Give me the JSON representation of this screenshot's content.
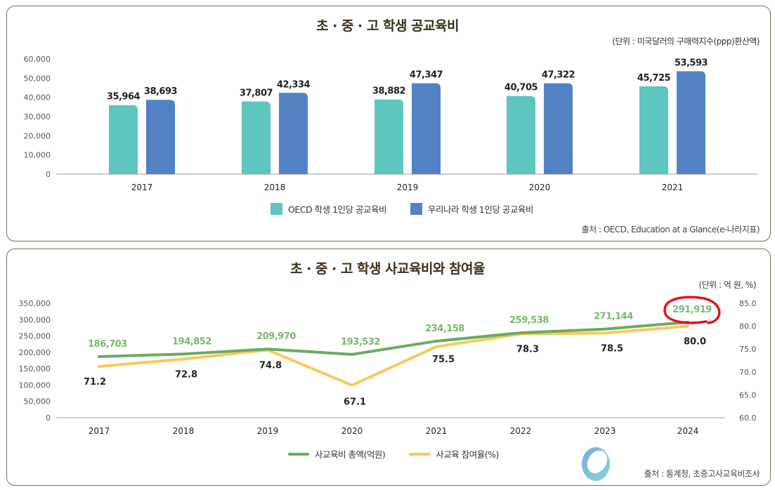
{
  "colors": {
    "oecd": "#5ec5bf",
    "korea": "#5282c4",
    "total": "#6aaa64",
    "rate": "#f9c95a",
    "annotation": "#e0141e"
  },
  "chart_data": [
    {
      "type": "bar",
      "title": "초 · 중 · 고 학생 공교육비",
      "unit_note": "(단위 : 미국달러의 구매력지수(ppp)환산액)",
      "source": "출처 : OECD, Education at a Glance(e-나라지표)",
      "categories": [
        "2017",
        "2018",
        "2019",
        "2020",
        "2021"
      ],
      "ylim": [
        0,
        60000
      ],
      "yticks": [
        "0",
        "10,000",
        "20,000",
        "30,000",
        "40,000",
        "50,000",
        "60,000"
      ],
      "legend_placement": "bottom",
      "series": [
        {
          "name": "OECD 학생 1인당 공교육비",
          "values": [
            35964,
            37807,
            38882,
            40705,
            45725
          ],
          "labels": [
            "35,964",
            "37,807",
            "38,882",
            "40,705",
            "45,725"
          ]
        },
        {
          "name": "우리나라 학생 1인당 공교육비",
          "values": [
            38693,
            42334,
            47347,
            47322,
            53593
          ],
          "labels": [
            "38,693",
            "42,334",
            "47,347",
            "47,322",
            "53,593"
          ]
        }
      ]
    },
    {
      "type": "line",
      "title": "초 · 중 · 고 학생 사교육비와 참여율",
      "unit_note": "(단위 : 억 원, %)",
      "source": "출처 : 통계청, 초중고사교육비조사",
      "categories": [
        "2017",
        "2018",
        "2019",
        "2020",
        "2021",
        "2022",
        "2023",
        "2024"
      ],
      "ylim_left": [
        0,
        350000
      ],
      "yticks_left": [
        "0",
        "50,000",
        "100,000",
        "150,000",
        "200,000",
        "250,000",
        "300,000",
        "350,000"
      ],
      "ylim_right": [
        60,
        85
      ],
      "yticks_right": [
        "60.0",
        "65.0",
        "70.0",
        "75.0",
        "80.0",
        "85.0"
      ],
      "legend_placement": "bottom",
      "series": [
        {
          "name": "사교육비 총액(억원)",
          "axis": "left",
          "values": [
            186703,
            194852,
            209970,
            193532,
            234158,
            259538,
            271144,
            291919
          ],
          "labels": [
            "186,703",
            "194,852",
            "209,970",
            "193,532",
            "234,158",
            "259,538",
            "271,144",
            "291,919"
          ]
        },
        {
          "name": "사교육 참여율(%)",
          "axis": "right",
          "values": [
            71.2,
            72.8,
            74.8,
            67.1,
            75.5,
            78.3,
            78.5,
            80.0
          ],
          "labels": [
            "71.2",
            "72.8",
            "74.8",
            "67.1",
            "75.5",
            "78.3",
            "78.5",
            "80.0"
          ]
        }
      ],
      "annotation": "red hand-drawn circle around 2024 total"
    }
  ]
}
